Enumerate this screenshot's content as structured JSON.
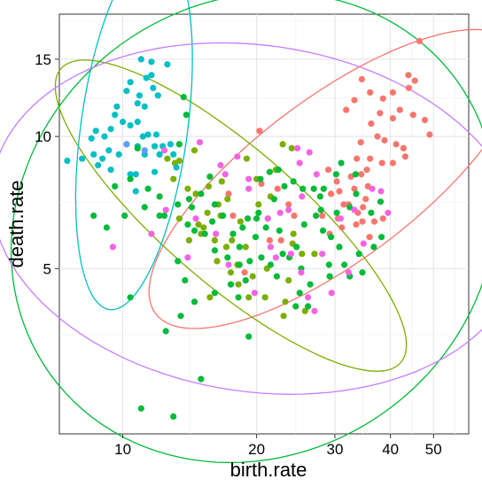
{
  "chart_data": {
    "type": "scatter",
    "xlabel": "birth.rate",
    "ylabel": "death.rate",
    "x_scale": "log",
    "y_scale": "log",
    "xlim": [
      7.2,
      60
    ],
    "ylim": [
      2.1,
      19
    ],
    "x_ticks": [
      10,
      20,
      30,
      40,
      50
    ],
    "y_ticks": [
      5,
      10,
      15
    ],
    "grid": true,
    "legend": "none",
    "series": [
      {
        "color": "#F8766D",
        "points": [
          [
            46.5,
            16.5
          ],
          [
            43.9,
            13.8
          ],
          [
            44.0,
            12.9
          ],
          [
            45.4,
            13.4
          ],
          [
            34.5,
            13.5
          ],
          [
            40.5,
            12.6
          ],
          [
            38.5,
            12.2
          ],
          [
            36.0,
            12.6
          ],
          [
            33.2,
            12.1
          ],
          [
            31.8,
            11.5
          ],
          [
            37.9,
            11.3
          ],
          [
            40.5,
            11.0
          ],
          [
            42.0,
            11.5
          ],
          [
            45.0,
            11.2
          ],
          [
            47.8,
            10.9
          ],
          [
            49.0,
            10.1
          ],
          [
            36.2,
            10.7
          ],
          [
            37.4,
            10.0
          ],
          [
            38.8,
            9.8
          ],
          [
            34.3,
            9.7
          ],
          [
            41.2,
            9.6
          ],
          [
            42.8,
            9.4
          ],
          [
            43.2,
            9.0
          ],
          [
            40.5,
            8.7
          ],
          [
            38.3,
            8.7
          ],
          [
            36.0,
            8.9
          ],
          [
            33.6,
            8.9
          ],
          [
            35.4,
            8.4
          ],
          [
            34.4,
            8.2
          ],
          [
            32.6,
            8.1
          ],
          [
            35.6,
            7.7
          ],
          [
            33.2,
            7.6
          ],
          [
            30.7,
            7.5
          ],
          [
            29.4,
            7.4
          ],
          [
            31.4,
            7.0
          ],
          [
            32.2,
            7.0
          ],
          [
            35.2,
            7.2
          ],
          [
            34.7,
            6.9
          ],
          [
            33.8,
            6.7
          ],
          [
            34.6,
            6.4
          ],
          [
            36.8,
            6.4
          ],
          [
            38.5,
            6.5
          ],
          [
            35.9,
            5.9
          ],
          [
            33.5,
            6.3
          ],
          [
            31.1,
            6.2
          ],
          [
            30.5,
            6.5
          ],
          [
            29.2,
            6.0
          ],
          [
            28.1,
            6.6
          ],
          [
            24.3,
            6.6
          ],
          [
            23.6,
            7.0
          ],
          [
            22.3,
            7.6
          ],
          [
            21.4,
            5.8
          ],
          [
            22.7,
            5.8
          ],
          [
            18.8,
            4.9
          ],
          [
            17.7,
            6.6
          ],
          [
            17.3,
            7.4
          ],
          [
            20.5,
            7.8
          ],
          [
            20.3,
            10.3
          ],
          [
            29.0,
            8.4
          ],
          [
            30.3,
            7.9
          ]
        ]
      },
      {
        "color": "#7CAE00",
        "points": [
          [
            13.1,
            8.7
          ],
          [
            13.4,
            8.8
          ],
          [
            14.5,
            9.3
          ],
          [
            12.6,
            8.9
          ],
          [
            13.0,
            8.0
          ],
          [
            14.0,
            7.6
          ],
          [
            14.6,
            7.4
          ],
          [
            15.6,
            7.7
          ],
          [
            16.7,
            7.9
          ],
          [
            17.2,
            7.2
          ],
          [
            16.4,
            7.0
          ],
          [
            16.6,
            6.6
          ],
          [
            15.5,
            6.7
          ],
          [
            14.8,
            6.3
          ],
          [
            15.0,
            6.0
          ],
          [
            13.4,
            6.5
          ],
          [
            14.1,
            5.8
          ],
          [
            16.1,
            5.8
          ],
          [
            17.1,
            5.6
          ],
          [
            18.9,
            5.6
          ],
          [
            16.3,
            5.2
          ],
          [
            18.1,
            5.1
          ],
          [
            19.6,
            4.8
          ],
          [
            17.5,
            4.9
          ],
          [
            21.1,
            5.0
          ],
          [
            18.2,
            4.6
          ],
          [
            24.1,
            5.7
          ],
          [
            25.3,
            5.4
          ],
          [
            27.0,
            5.4
          ],
          [
            23.6,
            4.7
          ],
          [
            20.9,
            4.3
          ],
          [
            19.2,
            4.3
          ],
          [
            25.7,
            4.0
          ],
          [
            23.2,
            4.2
          ],
          [
            21.5,
            7.3
          ],
          [
            20.2,
            7.0
          ],
          [
            20.0,
            8.0
          ],
          [
            22.9,
            9.6
          ],
          [
            24.0,
            9.4
          ],
          [
            22.1,
            8.4
          ],
          [
            19.0,
            8.9
          ],
          [
            18.4,
            6.4
          ],
          [
            15.2,
            6.2
          ],
          [
            15.7,
            4.3
          ],
          [
            17.6,
            5.8
          ],
          [
            23.0,
            3.9
          ],
          [
            24.2,
            6.0
          ],
          [
            21.2,
            6.5
          ]
        ]
      },
      {
        "color": "#00BFC4",
        "points": [
          [
            11.0,
            15.0
          ],
          [
            11.6,
            14.8
          ],
          [
            12.6,
            14.6
          ],
          [
            11.6,
            13.8
          ],
          [
            10.4,
            13.3
          ],
          [
            11.3,
            13.6
          ],
          [
            11.7,
            12.9
          ],
          [
            10.2,
            12.7
          ],
          [
            10.9,
            12.4
          ],
          [
            12.0,
            12.4
          ],
          [
            10.8,
            11.9
          ],
          [
            9.7,
            11.7
          ],
          [
            11.2,
            11.7
          ],
          [
            9.6,
            11.2
          ],
          [
            10.0,
            10.8
          ],
          [
            10.8,
            10.8
          ],
          [
            10.4,
            10.6
          ],
          [
            9.4,
            10.4
          ],
          [
            8.7,
            10.3
          ],
          [
            11.4,
            10.1
          ],
          [
            11.9,
            10.1
          ],
          [
            9.1,
            10.0
          ],
          [
            8.5,
            9.9
          ],
          [
            11.1,
            10.0
          ],
          [
            10.8,
            9.5
          ],
          [
            11.8,
            9.5
          ],
          [
            12.3,
            9.5
          ],
          [
            12.8,
            9.6
          ],
          [
            10.2,
            9.6
          ],
          [
            9.3,
            9.3
          ],
          [
            8.6,
            9.1
          ],
          [
            9.0,
            8.9
          ],
          [
            9.8,
            9.1
          ],
          [
            11.2,
            9.1
          ],
          [
            12.1,
            9.1
          ],
          [
            13.0,
            9.1
          ],
          [
            13.2,
            8.5
          ],
          [
            11.8,
            8.3
          ],
          [
            10.7,
            8.2
          ],
          [
            10.4,
            8.2
          ],
          [
            9.4,
            8.4
          ],
          [
            8.8,
            8.6
          ],
          [
            8.1,
            8.9
          ],
          [
            7.5,
            8.8
          ],
          [
            10.7,
            7.5
          ]
        ]
      },
      {
        "color": "#00BA38",
        "points": [
          [
            13.7,
            12.3
          ],
          [
            13.9,
            11.2
          ],
          [
            13.4,
            9.6
          ],
          [
            10.8,
            9.4
          ],
          [
            10.4,
            8.0
          ],
          [
            11.4,
            7.6
          ],
          [
            12.1,
            7.3
          ],
          [
            13.3,
            7.0
          ],
          [
            12.4,
            6.6
          ],
          [
            11.2,
            6.9
          ],
          [
            9.6,
            7.7
          ],
          [
            10.1,
            6.6
          ],
          [
            9.2,
            6.2
          ],
          [
            8.6,
            6.6
          ],
          [
            12.1,
            6.6
          ],
          [
            14.0,
            6.3
          ],
          [
            14.5,
            6.1
          ],
          [
            15.3,
            6.0
          ],
          [
            16.1,
            5.5
          ],
          [
            17.2,
            5.3
          ],
          [
            18.3,
            5.6
          ],
          [
            19.3,
            5.2
          ],
          [
            20.5,
            5.3
          ],
          [
            21.5,
            5.1
          ],
          [
            22.9,
            5.4
          ],
          [
            23.7,
            5.3
          ],
          [
            24.6,
            5.6
          ],
          [
            25.2,
            5.0
          ],
          [
            26.4,
            4.6
          ],
          [
            26.1,
            4.1
          ],
          [
            24.5,
            4.1
          ],
          [
            22.2,
            4.8
          ],
          [
            18.9,
            4.7
          ],
          [
            17.5,
            4.6
          ],
          [
            16.1,
            4.4
          ],
          [
            14.5,
            4.2
          ],
          [
            13.5,
            3.9
          ],
          [
            12.5,
            3.6
          ],
          [
            10.4,
            4.3
          ],
          [
            19.2,
            3.5
          ],
          [
            15.0,
            2.8
          ],
          [
            11.0,
            2.4
          ],
          [
            13.0,
            2.3
          ],
          [
            29.4,
            5.9
          ],
          [
            30.3,
            6.7
          ],
          [
            32.4,
            6.9
          ],
          [
            33.5,
            7.4
          ],
          [
            36.2,
            6.7
          ],
          [
            38.0,
            7.1
          ],
          [
            38.2,
            5.9
          ],
          [
            36.7,
            5.6
          ],
          [
            34.0,
            5.4
          ],
          [
            31.5,
            5.1
          ],
          [
            29.1,
            5.1
          ],
          [
            29.2,
            4.8
          ],
          [
            32.4,
            4.8
          ],
          [
            34.6,
            4.9
          ],
          [
            30.7,
            5.6
          ],
          [
            28.2,
            6.1
          ],
          [
            27.2,
            6.6
          ],
          [
            28.3,
            7.6
          ],
          [
            30.2,
            8.2
          ],
          [
            31.0,
            8.7
          ],
          [
            33.4,
            8.2
          ],
          [
            27.8,
            7.3
          ],
          [
            26.9,
            7.6
          ],
          [
            25.4,
            7.6
          ],
          [
            24.2,
            7.9
          ],
          [
            23.1,
            7.7
          ],
          [
            22.4,
            8.4
          ],
          [
            21.4,
            8.3
          ],
          [
            20.4,
            8.0
          ],
          [
            21.9,
            7.2
          ],
          [
            20.2,
            6.7
          ],
          [
            19.1,
            6.5
          ],
          [
            18.6,
            6.2
          ],
          [
            17.7,
            6.0
          ],
          [
            16.8,
            6.6
          ],
          [
            16.1,
            7.0
          ],
          [
            15.0,
            7.4
          ],
          [
            14.3,
            6.9
          ],
          [
            14.1,
            7.2
          ],
          [
            15.7,
            8.1
          ],
          [
            15.9,
            6.4
          ],
          [
            27.9,
            6.8
          ],
          [
            25.6,
            6.3
          ],
          [
            22.5,
            6.1
          ],
          [
            21.0,
            6.2
          ],
          [
            19.9,
            5.9
          ],
          [
            18.3,
            5.1
          ],
          [
            18.2,
            4.3
          ],
          [
            20.0,
            6.5
          ],
          [
            25.0,
            4.4
          ],
          [
            13.3,
            5.2
          ],
          [
            13.8,
            4.7
          ]
        ]
      },
      {
        "color": "#619CFF",
        "points": [
          [
            10.2,
            9.6
          ],
          [
            11.2,
            9.3
          ]
        ]
      },
      {
        "color": "#F564E3",
        "points": [
          [
            12.4,
            9.3
          ],
          [
            14.9,
            9.7
          ],
          [
            16.6,
            8.6
          ],
          [
            18.1,
            9.0
          ],
          [
            17.0,
            8.2
          ],
          [
            19.2,
            8.0
          ],
          [
            19.2,
            7.6
          ],
          [
            21.2,
            6.5
          ],
          [
            22.6,
            6.7
          ],
          [
            23.6,
            6.8
          ],
          [
            25.3,
            7.3
          ],
          [
            27.3,
            8.2
          ],
          [
            25.0,
            8.7
          ],
          [
            26.3,
            9.2
          ],
          [
            24.7,
            9.4
          ],
          [
            16.2,
            6.0
          ],
          [
            17.3,
            5.1
          ],
          [
            19.8,
            4.4
          ],
          [
            22.1,
            5.3
          ],
          [
            23.9,
            5.4
          ],
          [
            26.1,
            4.3
          ],
          [
            28.1,
            5.4
          ],
          [
            30.9,
            6.5
          ],
          [
            33.2,
            6.8
          ],
          [
            36.4,
            7.6
          ],
          [
            38.1,
            7.5
          ],
          [
            39.5,
            6.7
          ],
          [
            34.8,
            5.7
          ],
          [
            32.2,
            4.9
          ],
          [
            29.5,
            4.4
          ],
          [
            27.0,
            4.0
          ],
          [
            25.2,
            4.9
          ],
          [
            21.5,
            5.6
          ],
          [
            9.5,
            5.6
          ],
          [
            11.6,
            6.0
          ],
          [
            12.5,
            6.8
          ],
          [
            14.6,
            6.5
          ],
          [
            14.0,
            5.3
          ]
        ]
      }
    ],
    "ellipses": [
      {
        "color": "#F8766D",
        "center": [
          30.0,
          8.0
        ],
        "semi_major": 0.5,
        "semi_minor": 0.18,
        "angle_deg": 36
      },
      {
        "color": "#7CAE00",
        "center": [
          17.5,
          6.6
        ],
        "semi_major": 0.5,
        "semi_minor": 0.15,
        "angle_deg": -40
      },
      {
        "color": "#00BFC4",
        "center": [
          10.6,
          10.4
        ],
        "semi_major": 0.4,
        "semi_minor": 0.12,
        "angle_deg": 82
      },
      {
        "color": "#00BA38",
        "center": [
          19.7,
          6.2
        ],
        "semi_major": 0.56,
        "semi_minor": 0.5,
        "angle_deg": 30
      },
      {
        "color": "#C77CFF",
        "center": [
          20.0,
          6.5
        ],
        "semi_major": 0.6,
        "semi_minor": 0.38,
        "angle_deg": -8
      }
    ]
  }
}
